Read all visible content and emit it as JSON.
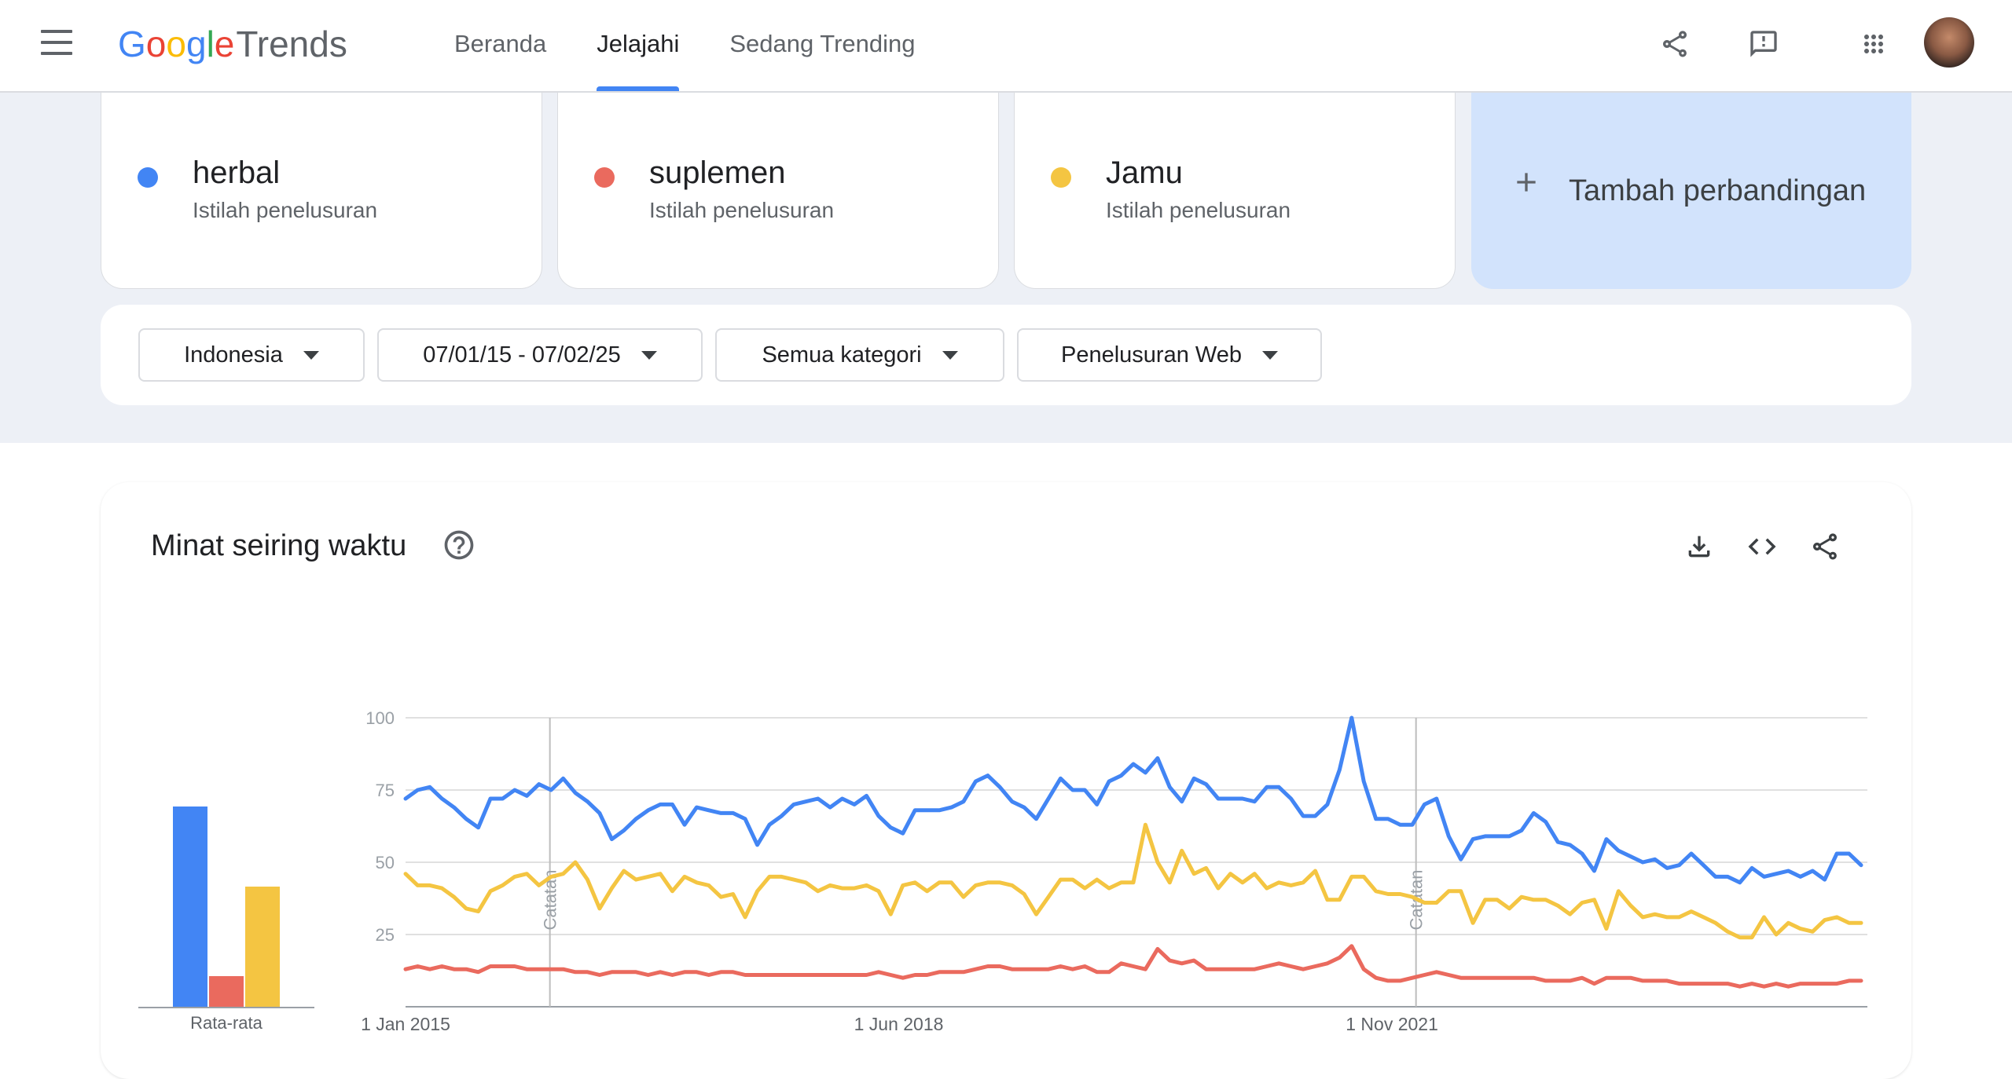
{
  "header": {
    "logo_google": [
      "G",
      "o",
      "o",
      "g",
      "l",
      "e"
    ],
    "logo_trends": "Trends",
    "nav": [
      "Beranda",
      "Jelajahi",
      "Sedang Trending"
    ],
    "active_tab": "Jelajahi",
    "icons": [
      "menu-icon",
      "share-icon",
      "feedback-icon",
      "apps-icon",
      "avatar"
    ]
  },
  "terms": [
    {
      "name": "herbal",
      "sub": "Istilah penelusuran",
      "color": "#4285f4"
    },
    {
      "name": "suplemen",
      "sub": "Istilah penelusuran",
      "color": "#ea6a5e"
    },
    {
      "name": "Jamu",
      "sub": "Istilah penelusuran",
      "color": "#f4c542"
    }
  ],
  "add_compare": "Tambah perbandingan",
  "filters": {
    "region": "Indonesia",
    "date": "07/01/15 - 07/02/25",
    "category": "Semua kategori",
    "search_type": "Penelusuran Web"
  },
  "chart_card": {
    "title": "Minat seiring waktu",
    "icons": [
      "help-icon",
      "download-icon",
      "embed-icon",
      "share-icon"
    ]
  },
  "chart_data": [
    {
      "type": "bar",
      "categories": [
        "herbal",
        "suplemen",
        "Jamu"
      ],
      "values": [
        65,
        10,
        39
      ],
      "colors": [
        "#4285f4",
        "#ea6a5e",
        "#f4c542"
      ],
      "xlabel": "Rata-rata",
      "ylim": [
        0,
        100
      ]
    },
    {
      "type": "line",
      "ylim": [
        0,
        100
      ],
      "yticks": [
        25,
        50,
        75,
        100
      ],
      "xlim": [
        "2015-01",
        "2025-02"
      ],
      "xticks": [
        {
          "date": "2015-01",
          "label": "1 Jan 2015"
        },
        {
          "date": "2018-06",
          "label": "1 Jun 2018"
        },
        {
          "date": "2021-11",
          "label": "1 Nov 2021"
        }
      ],
      "annotations": [
        {
          "date": "2016-01",
          "label": "Catatan"
        },
        {
          "date": "2022-01",
          "label": "Catatan"
        }
      ],
      "grid": true,
      "series": [
        {
          "name": "herbal",
          "color": "#4285f4",
          "values": [
            72,
            75,
            76,
            72,
            69,
            65,
            62,
            72,
            72,
            75,
            73,
            77,
            75,
            79,
            74,
            71,
            67,
            58,
            61,
            65,
            68,
            70,
            70,
            63,
            69,
            68,
            67,
            67,
            65,
            56,
            63,
            66,
            70,
            71,
            72,
            69,
            72,
            70,
            73,
            66,
            62,
            60,
            68,
            68,
            68,
            69,
            71,
            78,
            80,
            76,
            71,
            69,
            65,
            72,
            79,
            75,
            75,
            70,
            78,
            80,
            84,
            81,
            86,
            76,
            71,
            79,
            77,
            72,
            72,
            72,
            71,
            76,
            76,
            72,
            66,
            66,
            70,
            82,
            100,
            78,
            65,
            65,
            63,
            63,
            70,
            72,
            59,
            51,
            58,
            59,
            59,
            59,
            61,
            67,
            64,
            57,
            56,
            53,
            47,
            58,
            54,
            52,
            50,
            51,
            48,
            49,
            53,
            49,
            45,
            45,
            43,
            48,
            45,
            46,
            47,
            45,
            47,
            44,
            53,
            53,
            49
          ]
        },
        {
          "name": "suplemen",
          "color": "#ea6a5e",
          "values": [
            13,
            14,
            13,
            14,
            13,
            13,
            12,
            14,
            14,
            14,
            13,
            13,
            13,
            13,
            12,
            12,
            11,
            12,
            12,
            12,
            11,
            12,
            11,
            12,
            12,
            11,
            12,
            12,
            11,
            11,
            11,
            11,
            11,
            11,
            11,
            11,
            11,
            11,
            11,
            12,
            11,
            10,
            11,
            11,
            12,
            12,
            12,
            13,
            14,
            14,
            13,
            13,
            13,
            13,
            14,
            13,
            14,
            12,
            12,
            15,
            14,
            13,
            20,
            16,
            15,
            16,
            13,
            13,
            13,
            13,
            13,
            14,
            15,
            14,
            13,
            14,
            15,
            17,
            21,
            13,
            10,
            9,
            9,
            10,
            11,
            12,
            11,
            10,
            10,
            10,
            10,
            10,
            10,
            10,
            9,
            9,
            9,
            10,
            8,
            10,
            10,
            10,
            9,
            9,
            9,
            8,
            8,
            8,
            8,
            8,
            7,
            8,
            7,
            8,
            7,
            8,
            8,
            8,
            8,
            9,
            9
          ]
        },
        {
          "name": "Jamu",
          "color": "#f4c542",
          "values": [
            46,
            42,
            42,
            41,
            38,
            34,
            33,
            40,
            42,
            45,
            46,
            42,
            45,
            46,
            50,
            44,
            34,
            41,
            47,
            44,
            45,
            46,
            40,
            45,
            43,
            42,
            38,
            39,
            31,
            40,
            45,
            45,
            44,
            43,
            40,
            42,
            41,
            41,
            42,
            40,
            32,
            42,
            43,
            40,
            43,
            43,
            38,
            42,
            43,
            43,
            42,
            39,
            32,
            38,
            44,
            44,
            41,
            44,
            41,
            43,
            43,
            63,
            50,
            43,
            54,
            46,
            48,
            41,
            46,
            43,
            46,
            41,
            43,
            42,
            43,
            47,
            37,
            37,
            45,
            45,
            40,
            39,
            39,
            38,
            36,
            36,
            40,
            40,
            29,
            37,
            37,
            34,
            38,
            37,
            37,
            35,
            32,
            36,
            37,
            27,
            40,
            35,
            31,
            32,
            31,
            31,
            33,
            31,
            29,
            26,
            24,
            24,
            31,
            25,
            29,
            27,
            26,
            30,
            31,
            29,
            29
          ]
        }
      ]
    }
  ]
}
